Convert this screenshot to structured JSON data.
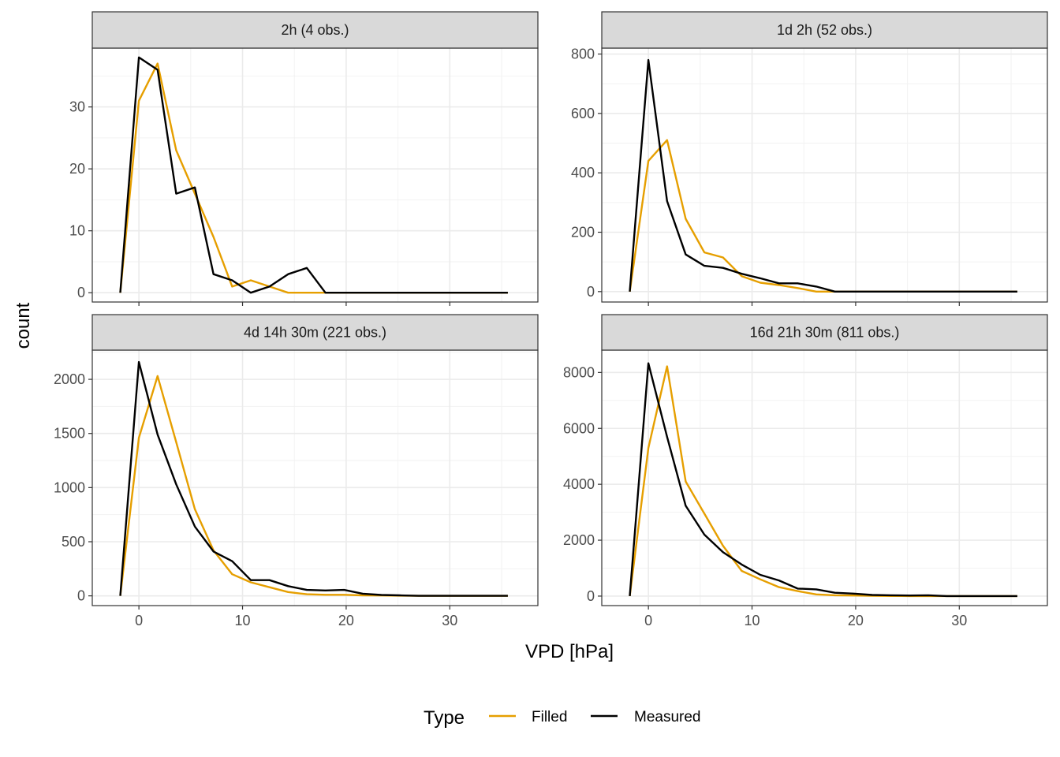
{
  "chart_data": {
    "type": "line",
    "xlabel": "VPD [hPa]",
    "ylabel": "count",
    "xlim": [
      -4.5,
      38.5
    ],
    "xticks": [
      0,
      10,
      20,
      30
    ],
    "x": [
      -1.8,
      0,
      1.8,
      3.6,
      5.4,
      7.2,
      9,
      10.8,
      12.6,
      14.4,
      16.2,
      18,
      19.8,
      21.6,
      23.4,
      25.2,
      27,
      28.8,
      30.6,
      32.4,
      34.2,
      35.6
    ],
    "legend": {
      "title": "Type",
      "position": "bottom",
      "entries": [
        {
          "label": "Filled",
          "color": "#E69F00"
        },
        {
          "label": "Measured",
          "color": "#000000"
        }
      ]
    },
    "panels": [
      {
        "strip": "2h (4 obs.)",
        "ylim": [
          -1.5,
          39.5
        ],
        "yticks": [
          0,
          10,
          20,
          30
        ],
        "yminor": [
          5,
          15,
          25,
          35
        ],
        "series": [
          {
            "name": "Filled",
            "values": [
              0,
              31,
              37,
              23,
              16,
              9,
              1,
              2,
              1,
              0,
              0,
              0,
              0,
              0,
              0,
              0,
              0,
              0,
              0,
              0,
              0,
              0
            ]
          },
          {
            "name": "Measured",
            "values": [
              0,
              38,
              36,
              16,
              17,
              3,
              2,
              0,
              1,
              3,
              4,
              0,
              0,
              0,
              0,
              0,
              0,
              0,
              0,
              0,
              0,
              0
            ]
          }
        ]
      },
      {
        "strip": "1d 2h (52 obs.)",
        "ylim": [
          -35,
          820
        ],
        "yticks": [
          0,
          200,
          400,
          600,
          800
        ],
        "yminor": [
          100,
          300,
          500,
          700
        ],
        "series": [
          {
            "name": "Filled",
            "values": [
              0,
              440,
              510,
              245,
              132,
              115,
              52,
              30,
              22,
              12,
              0,
              0,
              0,
              0,
              0,
              0,
              0,
              0,
              0,
              0,
              0,
              0
            ]
          },
          {
            "name": "Measured",
            "values": [
              0,
              780,
              305,
              125,
              87,
              80,
              60,
              45,
              28,
              28,
              17,
              0,
              0,
              0,
              0,
              0,
              0,
              0,
              0,
              0,
              0,
              0
            ]
          }
        ]
      },
      {
        "strip": "4d 14h 30m (221 obs.)",
        "ylim": [
          -90,
          2270
        ],
        "yticks": [
          0,
          500,
          1000,
          1500,
          2000
        ],
        "yminor": [
          250,
          750,
          1250,
          1750,
          2250
        ],
        "series": [
          {
            "name": "Filled",
            "values": [
              0,
              1460,
              2030,
              1420,
              800,
              420,
              200,
              125,
              80,
              35,
              15,
              10,
              10,
              5,
              3,
              2,
              0,
              0,
              0,
              0,
              0,
              0
            ]
          },
          {
            "name": "Measured",
            "values": [
              0,
              2160,
              1490,
              1030,
              640,
              410,
              320,
              145,
              145,
              90,
              55,
              50,
              55,
              20,
              8,
              5,
              0,
              0,
              0,
              0,
              0,
              0
            ]
          }
        ]
      },
      {
        "strip": "16d 21h 30m (811 obs.)",
        "ylim": [
          -340,
          8800
        ],
        "yticks": [
          0,
          2000,
          4000,
          6000,
          8000
        ],
        "yminor": [
          1000,
          3000,
          5000,
          7000
        ],
        "series": [
          {
            "name": "Filled",
            "values": [
              0,
              5300,
              8220,
              4100,
              2950,
              1800,
              900,
              600,
              320,
              180,
              60,
              30,
              20,
              10,
              5,
              0,
              0,
              0,
              0,
              0,
              0,
              0
            ]
          },
          {
            "name": "Measured",
            "values": [
              0,
              8330,
              5700,
              3230,
              2200,
              1570,
              1130,
              760,
              560,
              270,
              240,
              120,
              90,
              40,
              30,
              20,
              30,
              0,
              0,
              0,
              0,
              0
            ]
          }
        ]
      }
    ]
  }
}
